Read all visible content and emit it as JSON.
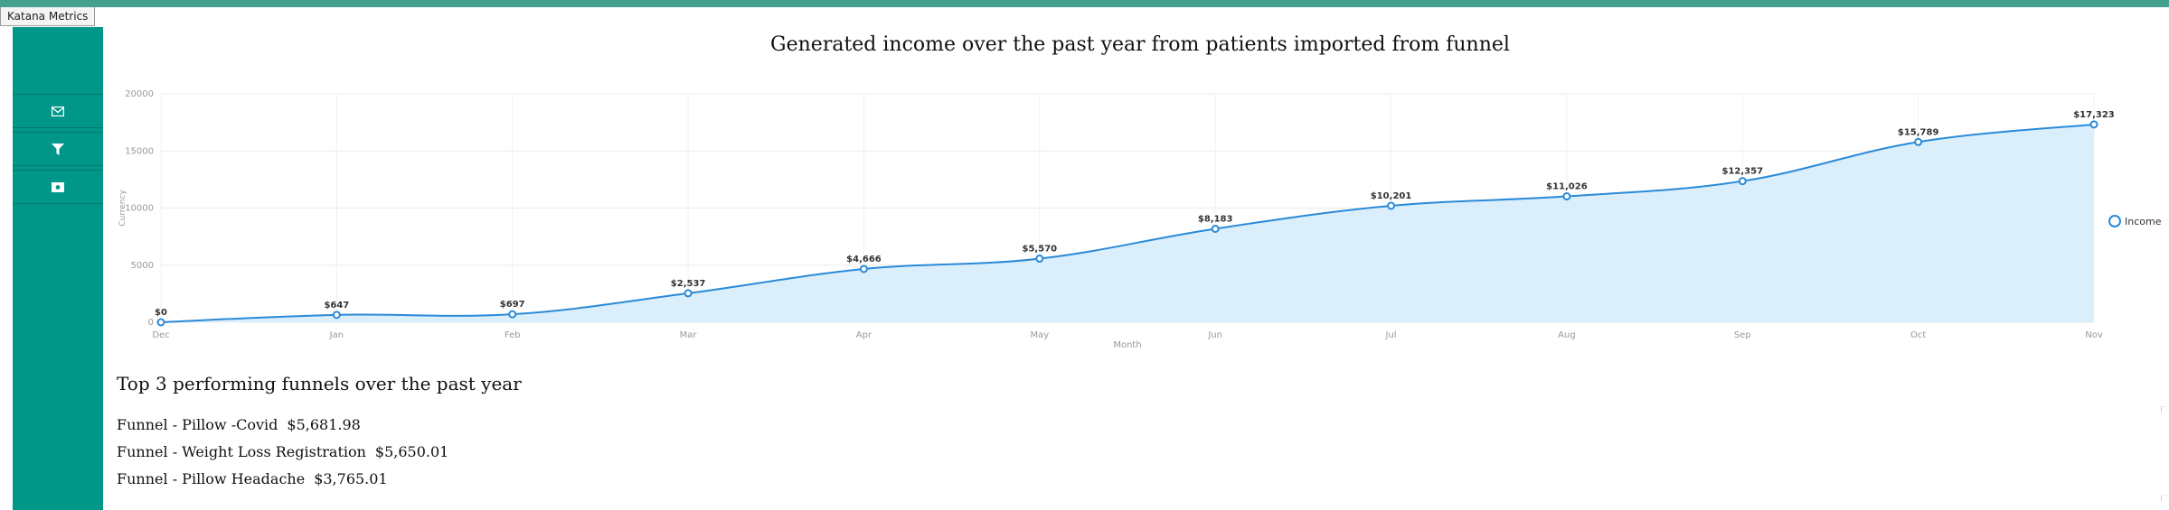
{
  "app": {
    "tab_title": "Katana Metrics"
  },
  "sidebar": {
    "items": [
      {
        "icon": "mail-icon"
      },
      {
        "icon": "filter-icon"
      },
      {
        "icon": "money-icon"
      }
    ]
  },
  "colors": {
    "topbar": "#46a08e",
    "sidebar": "#009688",
    "line": "#2a8ad8",
    "area": "#dbeefb"
  },
  "chart_data": {
    "type": "area",
    "title": "Generated income over the past year from patients imported from funnel",
    "xlabel": "Month",
    "ylabel": "Currency",
    "categories": [
      "Dec",
      "Jan",
      "Feb",
      "Mar",
      "Apr",
      "May",
      "Jun",
      "Jul",
      "Aug",
      "Sep",
      "Oct",
      "Nov"
    ],
    "yticks": [
      "0",
      "5000",
      "10000",
      "15000",
      "20000"
    ],
    "ylim": [
      0,
      20000
    ],
    "grid": true,
    "legend_position": "right",
    "series": [
      {
        "name": "Income",
        "values": [
          0,
          647,
          697,
          2537,
          4666,
          5570,
          8183,
          10201,
          11026,
          12357,
          15789,
          17323
        ],
        "labels": [
          "$0",
          "$647",
          "$697",
          "$2,537",
          "$4,666",
          "$5,570",
          "$8,183",
          "$10,201",
          "$11,026",
          "$12,357",
          "$15,789",
          "$17,323"
        ]
      }
    ]
  },
  "funnels": {
    "title": "Top 3 performing funnels over the past year",
    "items": [
      {
        "name": "Funnel - Pillow -Covid",
        "amount": "$5,681.98"
      },
      {
        "name": "Funnel - Weight Loss Registration",
        "amount": "$5,650.01"
      },
      {
        "name": "Funnel - Pillow Headache",
        "amount": "$3,765.01"
      }
    ]
  }
}
